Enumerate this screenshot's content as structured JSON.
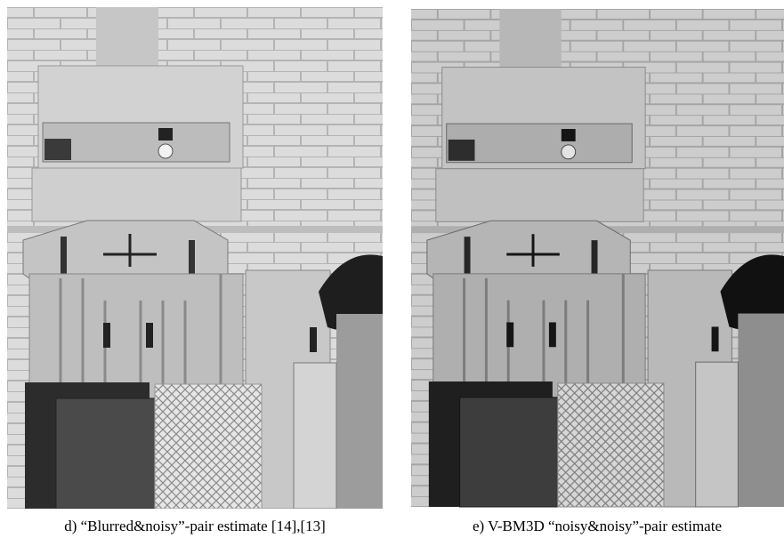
{
  "figure": {
    "panels": [
      {
        "caption": "d) “Blurred&noisy”-pair estimate [14],[13]"
      },
      {
        "caption": "e) V-BM3D “noisy&noisy”-pair estimate"
      }
    ]
  }
}
